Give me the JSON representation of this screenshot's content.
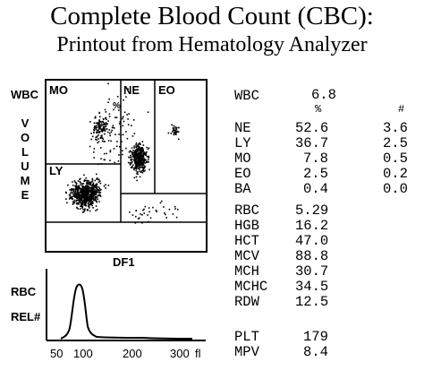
{
  "header": {
    "title": "Complete Blood Count  (CBC):",
    "subtitle": "Printout from Hematology Analyzer"
  },
  "scatter": {
    "y_axis_label": "WBC",
    "y_axis_vertical": [
      "V",
      "O",
      "L",
      "U",
      "M",
      "E"
    ],
    "x_axis_label": "DF1",
    "regions": [
      "MO",
      "NE",
      "EO",
      "LY"
    ],
    "percent_marker": "%"
  },
  "histogram": {
    "label_top": "RBC",
    "label_bottom": "REL#",
    "ticks": [
      "50",
      "100",
      "200",
      "300",
      "fl"
    ]
  },
  "results": {
    "col_percent": "%",
    "col_abs": "#",
    "wbc": {
      "label": "WBC",
      "value": "6.8"
    },
    "diff": [
      {
        "label": "NE",
        "pct": "52.6",
        "abs": "3.6"
      },
      {
        "label": "LY",
        "pct": "36.7",
        "abs": "2.5"
      },
      {
        "label": "MO",
        "pct": "7.8",
        "abs": "0.5"
      },
      {
        "label": "EO",
        "pct": "2.5",
        "abs": "0.2"
      },
      {
        "label": "BA",
        "pct": "0.4",
        "abs": "0.0"
      }
    ],
    "red": [
      {
        "label": "RBC",
        "value": "5.29"
      },
      {
        "label": "HGB",
        "value": "16.2"
      },
      {
        "label": "HCT",
        "value": "47.0"
      },
      {
        "label": "MCV",
        "value": "88.8"
      },
      {
        "label": "MCH",
        "value": "30.7"
      },
      {
        "label": "MCHC",
        "value": "34.5"
      },
      {
        "label": "RDW",
        "value": "12.5"
      }
    ],
    "platelets": [
      {
        "label": "PLT",
        "value": "179"
      },
      {
        "label": "MPV",
        "value": "8.4"
      }
    ]
  }
}
